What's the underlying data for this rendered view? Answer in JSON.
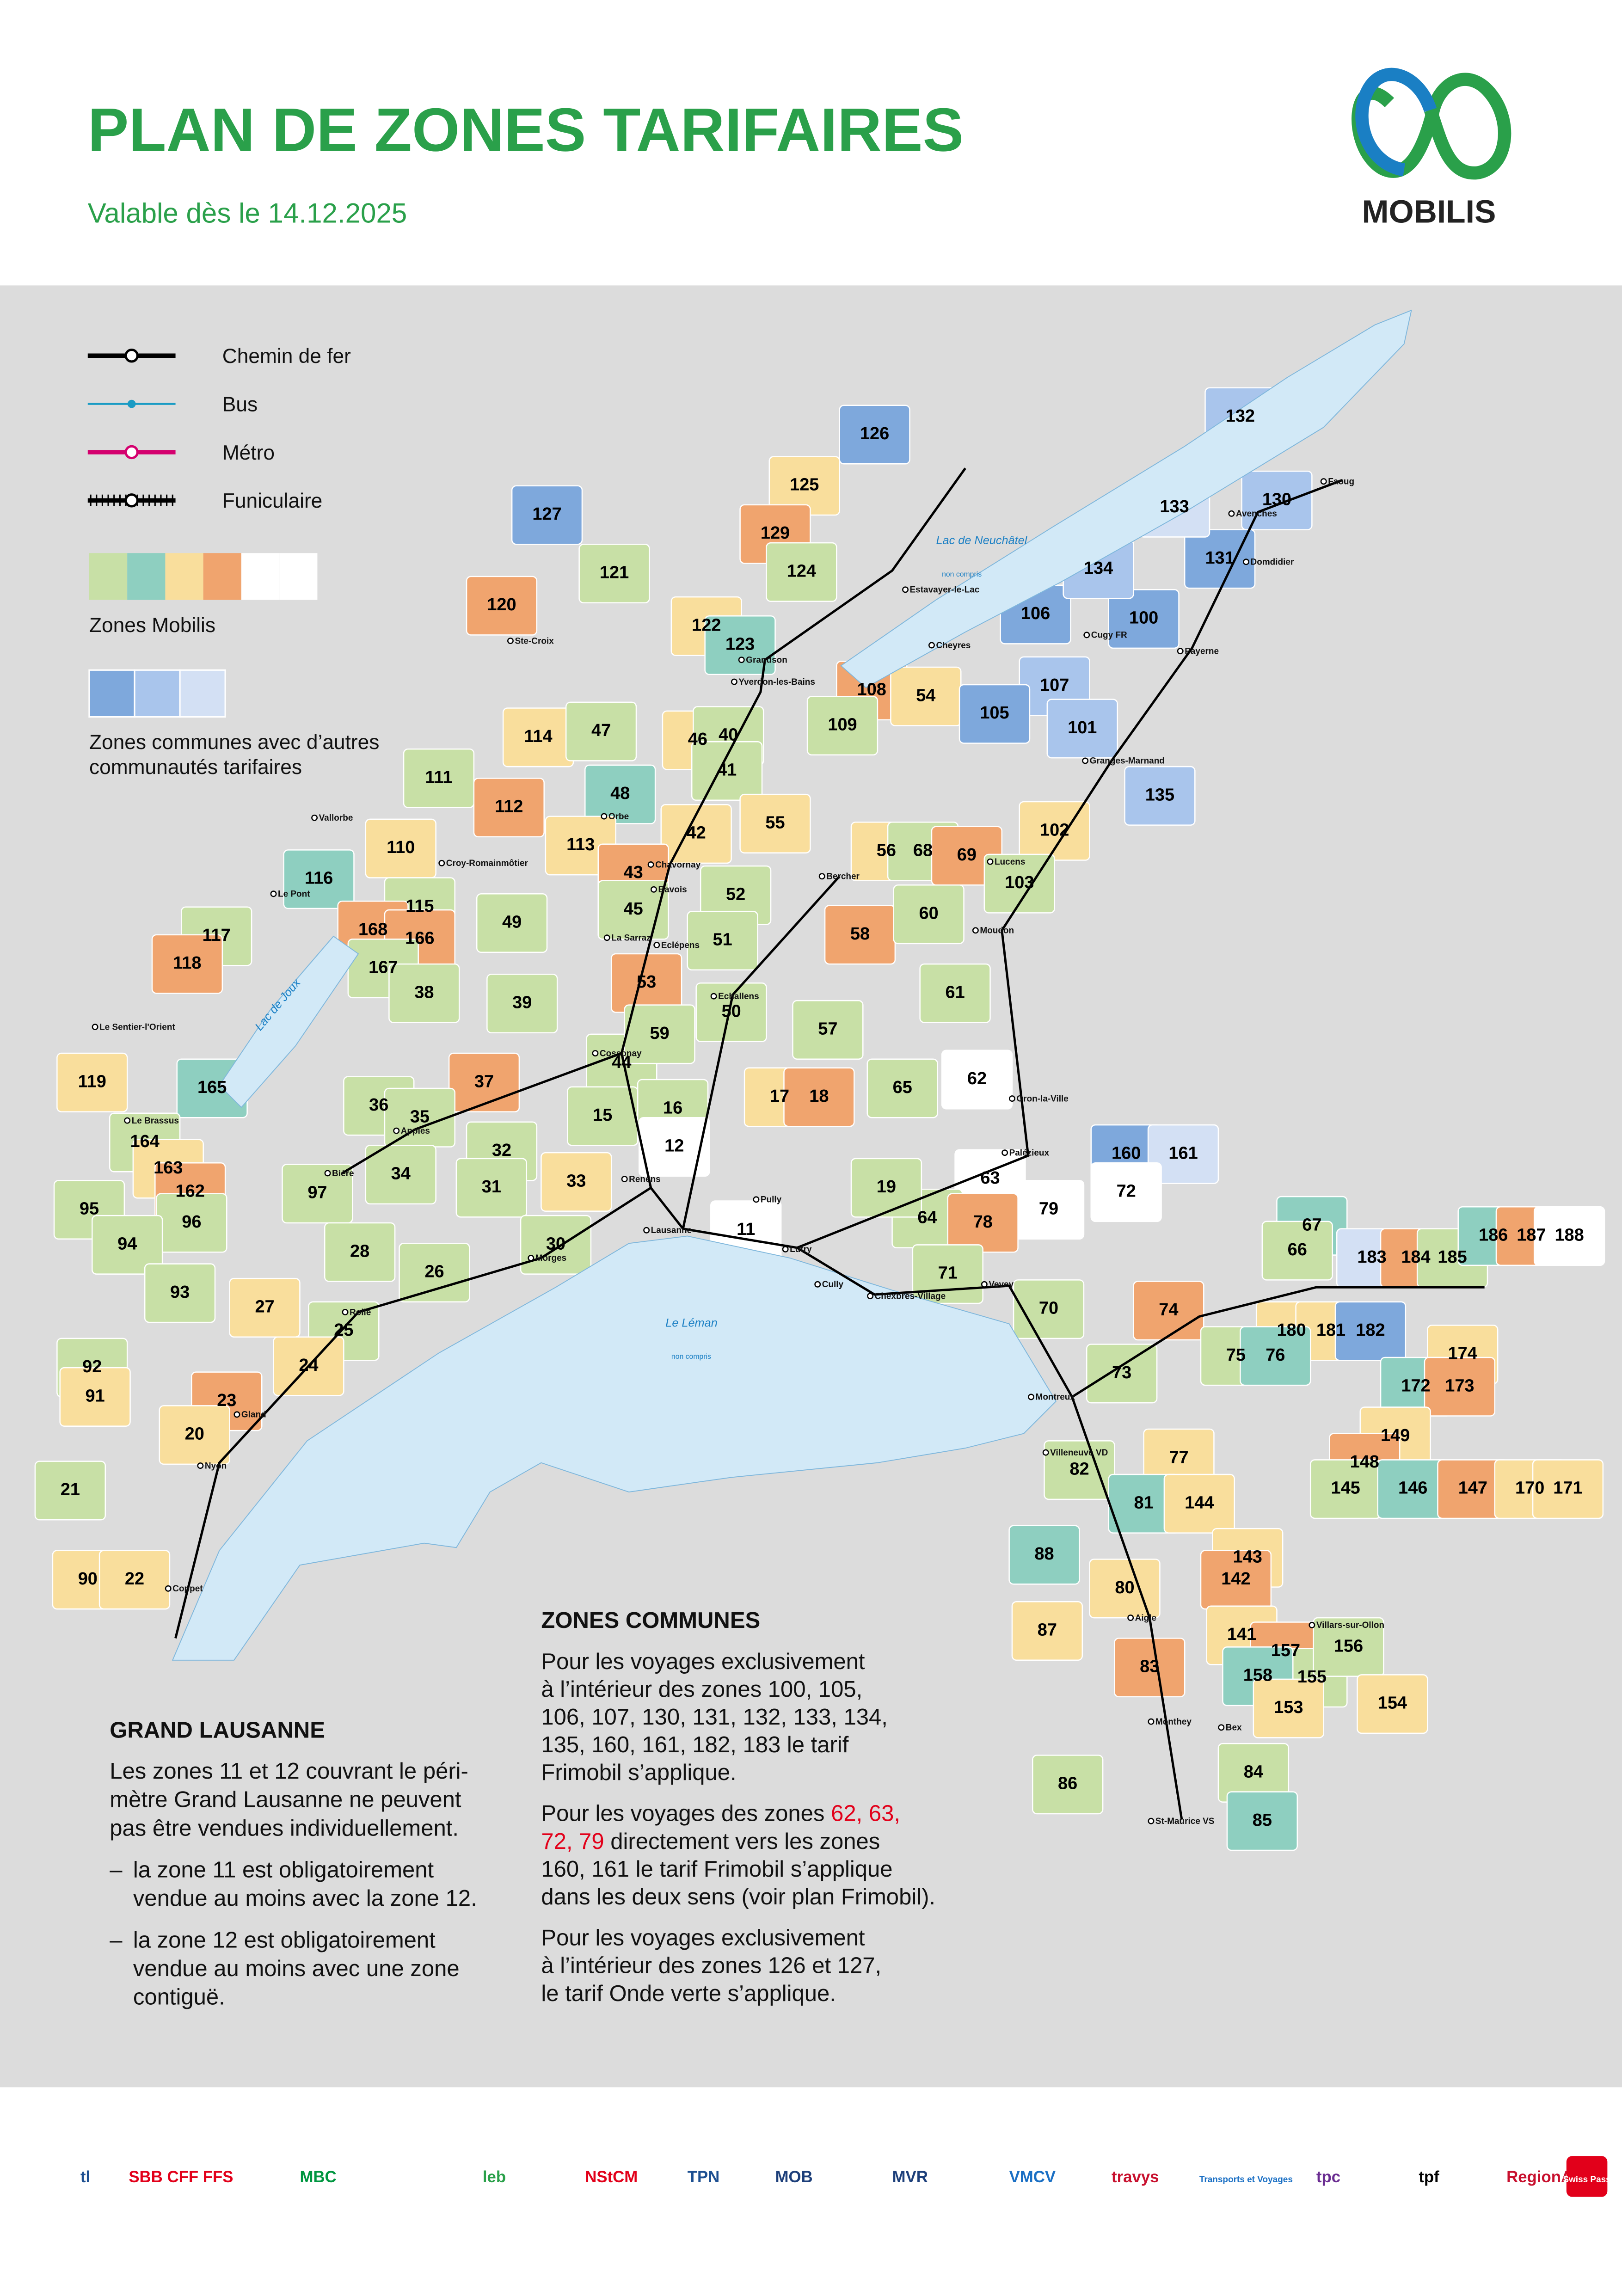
{
  "header": {
    "title": "PLAN DE ZONES TARIFAIRES",
    "subtitle": "Valable dès le 14.12.2025",
    "logo_text": "MOBILIS"
  },
  "legend": {
    "lines": [
      {
        "label": "Chemin de fer",
        "color": "#000000",
        "style": "rail"
      },
      {
        "label": "Bus",
        "color": "#1a9bc4",
        "style": "bus"
      },
      {
        "label": "Métro",
        "color": "#d4006e",
        "style": "metro"
      },
      {
        "label": "Funiculaire",
        "color": "#000000",
        "style": "funi"
      }
    ],
    "zones_mobilis": {
      "label": "Zones Mobilis",
      "colors": [
        "#c8e0a6",
        "#8ecfc0",
        "#f9de9c",
        "#f0a46e",
        "#ffffff",
        "#ffffff"
      ]
    },
    "zones_communes": {
      "lines": [
        "Zones communes avec d’autres",
        "communautés tarifaires"
      ],
      "colors": [
        "#7ea8dc",
        "#a9c5ec",
        "#d3e0f4"
      ]
    }
  },
  "lakes": [
    {
      "name": "Lac de Neuchâtel",
      "note": "non compris"
    },
    {
      "name": "Le Léman",
      "note": "non compris"
    },
    {
      "name": "Lac de Joux"
    }
  ],
  "zones": [
    {
      "label": "126",
      "color": "#7ea8dc"
    },
    {
      "label": "127",
      "color": "#7ea8dc"
    },
    {
      "label": "125",
      "color": "#f9de9c"
    },
    {
      "label": "129",
      "color": "#f0a46e"
    },
    {
      "label": "121",
      "color": "#c8e0a6"
    },
    {
      "label": "124",
      "color": "#c8e0a6"
    },
    {
      "label": "120",
      "color": "#f0a46e"
    },
    {
      "label": "122",
      "color": "#f9de9c"
    },
    {
      "label": "123",
      "color": "#8ecfc0"
    },
    {
      "label": "108",
      "color": "#f0a46e"
    },
    {
      "label": "54",
      "color": "#f9de9c"
    },
    {
      "label": "114",
      "color": "#f9de9c"
    },
    {
      "label": "47",
      "color": "#c8e0a6"
    },
    {
      "label": "46",
      "color": "#f9de9c"
    },
    {
      "label": "40",
      "color": "#c8e0a6"
    },
    {
      "label": "41",
      "color": "#c8e0a6"
    },
    {
      "label": "109",
      "color": "#c8e0a6"
    },
    {
      "label": "48",
      "color": "#8ecfc0"
    },
    {
      "label": "42",
      "color": "#f9de9c"
    },
    {
      "label": "55",
      "color": "#f9de9c"
    },
    {
      "label": "111",
      "color": "#c8e0a6"
    },
    {
      "label": "112",
      "color": "#f0a46e"
    },
    {
      "label": "110",
      "color": "#f9de9c"
    },
    {
      "label": "113",
      "color": "#f9de9c"
    },
    {
      "label": "43",
      "color": "#f0a46e"
    },
    {
      "label": "116",
      "color": "#8ecfc0"
    },
    {
      "label": "56",
      "color": "#f9de9c"
    },
    {
      "label": "68",
      "color": "#c8e0a6"
    },
    {
      "label": "69",
      "color": "#f0a46e"
    },
    {
      "label": "102",
      "color": "#f9de9c"
    },
    {
      "label": "103",
      "color": "#c8e0a6"
    },
    {
      "label": "115",
      "color": "#c8e0a6"
    },
    {
      "label": "49",
      "color": "#c8e0a6"
    },
    {
      "label": "45",
      "color": "#c8e0a6"
    },
    {
      "label": "52",
      "color": "#c8e0a6"
    },
    {
      "label": "51",
      "color": "#c8e0a6"
    },
    {
      "label": "58",
      "color": "#f0a46e"
    },
    {
      "label": "60",
      "color": "#c8e0a6"
    },
    {
      "label": "117",
      "color": "#c8e0a6"
    },
    {
      "label": "118",
      "color": "#f0a46e"
    },
    {
      "label": "168",
      "color": "#f0a46e"
    },
    {
      "label": "166",
      "color": "#f0a46e"
    },
    {
      "label": "167",
      "color": "#c8e0a6"
    },
    {
      "label": "38",
      "color": "#c8e0a6"
    },
    {
      "label": "53",
      "color": "#f0a46e"
    },
    {
      "label": "50",
      "color": "#c8e0a6"
    },
    {
      "label": "61",
      "color": "#c8e0a6"
    },
    {
      "label": "39",
      "color": "#c8e0a6"
    },
    {
      "label": "119",
      "color": "#f9de9c"
    },
    {
      "label": "165",
      "color": "#8ecfc0"
    },
    {
      "label": "44",
      "color": "#c8e0a6"
    },
    {
      "label": "59",
      "color": "#c8e0a6"
    },
    {
      "label": "57",
      "color": "#c8e0a6"
    },
    {
      "label": "37",
      "color": "#f0a46e"
    },
    {
      "label": "36",
      "color": "#c8e0a6"
    },
    {
      "label": "35",
      "color": "#c8e0a6"
    },
    {
      "label": "16",
      "color": "#c8e0a6"
    },
    {
      "label": "17",
      "color": "#f9de9c"
    },
    {
      "label": "18",
      "color": "#f0a46e"
    },
    {
      "label": "65",
      "color": "#c8e0a6"
    },
    {
      "label": "62",
      "color": "#ffffff",
      "text_color": "#e2001a"
    },
    {
      "label": "164",
      "color": "#c8e0a6"
    },
    {
      "label": "163",
      "color": "#f9de9c"
    },
    {
      "label": "15",
      "color": "#c8e0a6"
    },
    {
      "label": "34",
      "color": "#c8e0a6"
    },
    {
      "label": "32",
      "color": "#c8e0a6"
    },
    {
      "label": "12",
      "color": "#ffffff"
    },
    {
      "label": "33",
      "color": "#f9de9c"
    },
    {
      "label": "31",
      "color": "#c8e0a6"
    },
    {
      "label": "97",
      "color": "#c8e0a6"
    },
    {
      "label": "162",
      "color": "#f0a46e"
    },
    {
      "label": "95",
      "color": "#c8e0a6"
    },
    {
      "label": "96",
      "color": "#c8e0a6"
    },
    {
      "label": "160",
      "color": "#7ea8dc"
    },
    {
      "label": "161",
      "color": "#d3e0f4"
    },
    {
      "label": "63",
      "color": "#ffffff",
      "text_color": "#e2001a"
    },
    {
      "label": "72",
      "color": "#ffffff",
      "text_color": "#e2001a"
    },
    {
      "label": "79",
      "color": "#ffffff",
      "text_color": "#e2001a"
    },
    {
      "label": "64",
      "color": "#c8e0a6"
    },
    {
      "label": "19",
      "color": "#c8e0a6"
    },
    {
      "label": "11",
      "color": "#ffffff"
    },
    {
      "label": "78",
      "color": "#f0a46e"
    },
    {
      "label": "28",
      "color": "#c8e0a6"
    },
    {
      "label": "30",
      "color": "#c8e0a6"
    },
    {
      "label": "94",
      "color": "#c8e0a6"
    },
    {
      "label": "67",
      "color": "#8ecfc0"
    },
    {
      "label": "66",
      "color": "#c8e0a6"
    },
    {
      "label": "183",
      "color": "#d3e0f4"
    },
    {
      "label": "184",
      "color": "#f0a46e"
    },
    {
      "label": "185",
      "color": "#c8e0a6"
    },
    {
      "label": "186",
      "color": "#8ecfc0"
    },
    {
      "label": "187",
      "color": "#f0a46e"
    },
    {
      "label": "188",
      "color": "#ffffff"
    },
    {
      "label": "26",
      "color": "#c8e0a6"
    },
    {
      "label": "71",
      "color": "#c8e0a6"
    },
    {
      "label": "93",
      "color": "#c8e0a6"
    },
    {
      "label": "27",
      "color": "#f9de9c"
    },
    {
      "label": "74",
      "color": "#f0a46e"
    },
    {
      "label": "70",
      "color": "#c8e0a6"
    },
    {
      "label": "25",
      "color": "#c8e0a6"
    },
    {
      "label": "180",
      "color": "#f9de9c"
    },
    {
      "label": "181",
      "color": "#f9de9c"
    },
    {
      "label": "182",
      "color": "#7ea8dc"
    },
    {
      "label": "92",
      "color": "#c8e0a6"
    },
    {
      "label": "24",
      "color": "#f9de9c"
    },
    {
      "label": "75",
      "color": "#c8e0a6"
    },
    {
      "label": "76",
      "color": "#8ecfc0"
    },
    {
      "label": "73",
      "color": "#c8e0a6"
    },
    {
      "label": "174",
      "color": "#f9de9c"
    },
    {
      "label": "91",
      "color": "#f9de9c"
    },
    {
      "label": "23",
      "color": "#f0a46e"
    },
    {
      "label": "172",
      "color": "#8ecfc0"
    },
    {
      "label": "173",
      "color": "#f0a46e"
    },
    {
      "label": "20",
      "color": "#f9de9c"
    },
    {
      "label": "149",
      "color": "#f9de9c"
    },
    {
      "label": "77",
      "color": "#f9de9c"
    },
    {
      "label": "148",
      "color": "#f0a46e"
    },
    {
      "label": "82",
      "color": "#c8e0a6"
    },
    {
      "label": "21",
      "color": "#c8e0a6"
    },
    {
      "label": "145",
      "color": "#c8e0a6"
    },
    {
      "label": "146",
      "color": "#8ecfc0"
    },
    {
      "label": "147",
      "color": "#f0a46e"
    },
    {
      "label": "170",
      "color": "#f9de9c"
    },
    {
      "label": "171",
      "color": "#f9de9c"
    },
    {
      "label": "81",
      "color": "#8ecfc0"
    },
    {
      "label": "144",
      "color": "#f9de9c"
    },
    {
      "label": "88",
      "color": "#8ecfc0"
    },
    {
      "label": "143",
      "color": "#f9de9c"
    },
    {
      "label": "142",
      "color": "#f0a46e"
    },
    {
      "label": "90",
      "color": "#f9de9c"
    },
    {
      "label": "22",
      "color": "#f9de9c"
    },
    {
      "label": "80",
      "color": "#f9de9c"
    },
    {
      "label": "141",
      "color": "#f9de9c"
    },
    {
      "label": "87",
      "color": "#f9de9c"
    },
    {
      "label": "157",
      "color": "#f0a46e"
    },
    {
      "label": "155",
      "color": "#c8e0a6"
    },
    {
      "label": "156",
      "color": "#c8e0a6"
    },
    {
      "label": "158",
      "color": "#8ecfc0"
    },
    {
      "label": "83",
      "color": "#f0a46e"
    },
    {
      "label": "153",
      "color": "#f9de9c"
    },
    {
      "label": "154",
      "color": "#f9de9c"
    },
    {
      "label": "84",
      "color": "#c8e0a6"
    },
    {
      "label": "86",
      "color": "#c8e0a6"
    },
    {
      "label": "85",
      "color": "#8ecfc0"
    },
    {
      "label": "100",
      "color": "#7ea8dc"
    },
    {
      "label": "106",
      "color": "#7ea8dc"
    },
    {
      "label": "107",
      "color": "#a9c5ec"
    },
    {
      "label": "105",
      "color": "#7ea8dc"
    },
    {
      "label": "101",
      "color": "#a9c5ec"
    },
    {
      "label": "135",
      "color": "#a9c5ec"
    },
    {
      "label": "130",
      "color": "#a9c5ec"
    },
    {
      "label": "131",
      "color": "#7ea8dc"
    },
    {
      "label": "132",
      "color": "#a9c5ec"
    },
    {
      "label": "133",
      "color": "#d3e0f4"
    },
    {
      "label": "134",
      "color": "#a9c5ec"
    }
  ],
  "places": [
    "Yverdon-les-Bains",
    "Lausanne",
    "Morges",
    "Vevey",
    "Montreux",
    "Aigle",
    "Monthey",
    "Payerne",
    "Moudon",
    "Orbe",
    "Vallorbe",
    "Nyon",
    "Rolle",
    "Coppet",
    "Bex",
    "Ste-Croix",
    "Grandson",
    "Estavayer-le-Lac",
    "Avenches",
    "Echallens",
    "Cossonay",
    "Renens",
    "Pully",
    "Lutry",
    "Cully",
    "Palézieux",
    "Lucens",
    "Granges-Marnand",
    "Faoug",
    "Domdidier",
    "Gland",
    "Le Brassus",
    "Le Sentier-l'Orient",
    "Le Pont",
    "Villeneuve VD",
    "St-Maurice VS",
    "Chexbres-Village",
    "Apples",
    "Bière",
    "Bercher",
    "Chavornay",
    "La Sarraz",
    "Eclépens",
    "Oron-la-Ville",
    "Villars-sur-Ollon",
    "Cheyres",
    "Cugy FR",
    "Croy-Romainmôtier",
    "Bavois"
  ],
  "zones_communes_box": {
    "title": "ZONES COMMUNES",
    "paragraphs": [
      [
        [
          {
            "text": "Pour les voyages exclusivement"
          }
        ],
        [
          {
            "text": "à l’intérieur des zones 100, 105,"
          }
        ],
        [
          {
            "text": "106, 107, 130, 131, 132, 133, 134,"
          }
        ],
        [
          {
            "text": "135, 160, 161, 182, 183 le tarif"
          }
        ],
        [
          {
            "text": "Frimobil s’applique."
          }
        ]
      ],
      [
        [
          {
            "text": "Pour les voyages des zones "
          },
          {
            "text": "62, 63,",
            "color": "#e2001a"
          }
        ],
        [
          {
            "text": "72, 79",
            "color": "#e2001a"
          },
          {
            "text": " directement vers les zones"
          }
        ],
        [
          {
            "text": "160, 161 le tarif Frimobil s’applique"
          }
        ],
        [
          {
            "text": "dans les deux sens (voir plan Frimobil)."
          }
        ]
      ],
      [
        [
          {
            "text": "Pour les voyages exclusivement"
          }
        ],
        [
          {
            "text": "à l’intérieur des zones 126 et 127,"
          }
        ],
        [
          {
            "text": "le tarif Onde verte s’applique."
          }
        ]
      ]
    ]
  },
  "grand_lausanne_box": {
    "title": "GRAND LAUSANNE",
    "lines": [
      "Les zones 11 et 12 couvrant le péri-",
      "mètre Grand Lausanne ne peuvent",
      "pas être vendues individuellement."
    ],
    "bullets": [
      {
        "marker": "–",
        "lines": [
          "la zone 11 est obligatoirement",
          "vendue au moins avec la zone 12."
        ]
      },
      {
        "marker": "–",
        "lines": [
          "la zone 12 est obligatoirement",
          "vendue au moins avec une zone",
          "contiguë."
        ]
      }
    ]
  },
  "operators": [
    {
      "name": "tl",
      "color": "#1d4f91"
    },
    {
      "name": "SBB CFF FFS",
      "color": "#e2001a"
    },
    {
      "name": "MBC",
      "color": "#009640"
    },
    {
      "name": "leb",
      "color": "#2aa04a"
    },
    {
      "name": "NStCM",
      "color": "#e2001a"
    },
    {
      "name": "TPN",
      "color": "#1d4f91"
    },
    {
      "name": "MOB",
      "color": "#1d3f7a"
    },
    {
      "name": "MVR",
      "color": "#1d3f7a"
    },
    {
      "name": "VMCV",
      "color": "#1a6fc4"
    },
    {
      "name": "travys",
      "color": "#c8102e"
    },
    {
      "name": "Transports et Voyages",
      "color": "#1a6fc4"
    },
    {
      "name": "tpc",
      "color": "#6a2c91"
    },
    {
      "name": "tpf",
      "color": "#000000"
    },
    {
      "name": "RegionAlps",
      "color": "#c8102e"
    },
    {
      "name": "Swiss Pass",
      "color": "#e2001a"
    }
  ]
}
